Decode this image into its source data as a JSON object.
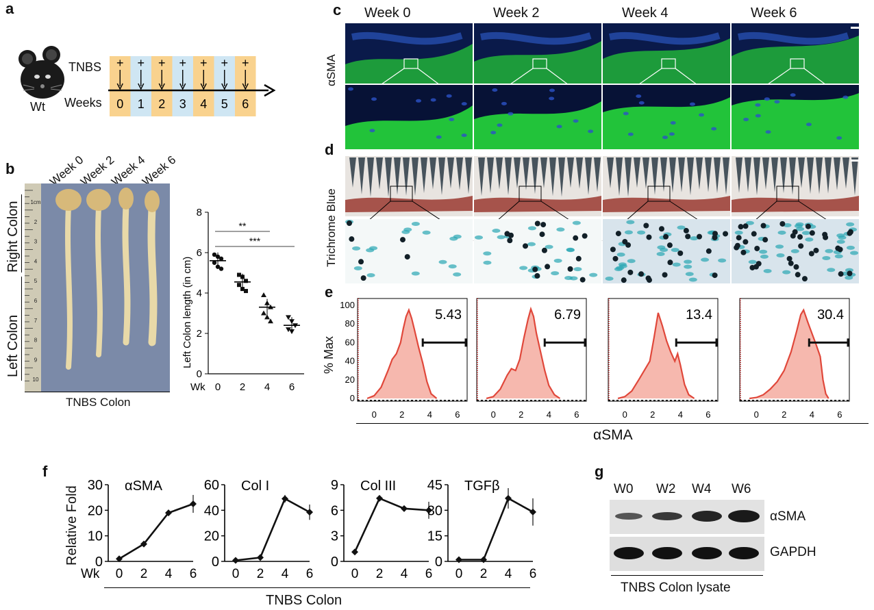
{
  "panel_letters": {
    "a": "a",
    "b": "b",
    "c": "c",
    "d": "d",
    "e": "e",
    "f": "f",
    "g": "g"
  },
  "panel_a": {
    "mouse_label": "Wt",
    "row_label_treatment": "TNBS",
    "row_label_time": "Weeks",
    "plus_sign": "+",
    "weeks": [
      "0",
      "1",
      "2",
      "3",
      "4",
      "5",
      "6"
    ],
    "colors": {
      "orange": "#f9d28e",
      "blue": "#cfe6f3"
    }
  },
  "panel_b": {
    "week_labels": [
      "Week 0",
      "Week 2",
      "Week 4",
      "Week 6"
    ],
    "region_right": "Right Colon",
    "region_left": "Left Colon",
    "caption": "TNBS Colon",
    "ruler_numbers": [
      "1cm",
      "2",
      "3",
      "4",
      "5",
      "6",
      "7",
      "8",
      "9",
      "10"
    ]
  },
  "chart_data": [
    {
      "id": "colon-length",
      "type": "scatter",
      "title": "",
      "ylabel": "Left Colon length (in cm)",
      "xlabel_prefix": "Wk",
      "categories": [
        "0",
        "2",
        "4",
        "6"
      ],
      "ylim": [
        0,
        8
      ],
      "yticks": [
        "0",
        "2",
        "4",
        "6",
        "8"
      ],
      "means": [
        5.6,
        4.55,
        3.3,
        2.4
      ],
      "points": [
        [
          5.9,
          5.8,
          5.7,
          5.5,
          5.3,
          5.2
        ],
        [
          4.9,
          4.8,
          4.6,
          4.4,
          4.2,
          4.1
        ],
        [
          3.9,
          3.5,
          3.3,
          3.0,
          2.8,
          2.6
        ],
        [
          2.8,
          2.6,
          2.4,
          2.2,
          2.1
        ]
      ],
      "significance": [
        {
          "label": "**",
          "from": "0",
          "to": "4"
        },
        {
          "label": "***",
          "from": "0",
          "to": "6"
        }
      ]
    },
    {
      "id": "flow-histograms",
      "type": "area",
      "ylabel": "% Max",
      "xlabel": "αSMA",
      "xticks": [
        "0",
        "2",
        "4",
        "6"
      ],
      "yticks": [
        "0",
        "20",
        "40",
        "60",
        "80",
        "100"
      ],
      "ylim": [
        0,
        100
      ],
      "xlim": [
        -1,
        6.5
      ],
      "panels": [
        {
          "week": "Week 0",
          "gate_percent": "5.43",
          "gate_start": 3.5,
          "peak_x": 2.4,
          "x": [
            -0.5,
            0,
            0.5,
            1,
            1.3,
            1.6,
            1.9,
            2.1,
            2.3,
            2.5,
            2.7,
            2.9,
            3.2,
            3.5,
            3.8,
            4.1,
            4.5
          ],
          "y": [
            0,
            3,
            12,
            30,
            42,
            48,
            60,
            75,
            88,
            95,
            86,
            74,
            55,
            38,
            18,
            5,
            0
          ]
        },
        {
          "week": "Week 2",
          "gate_percent": "6.79",
          "gate_start": 3.7,
          "peak_x": 2.7,
          "x": [
            -0.5,
            0,
            0.5,
            1,
            1.3,
            1.6,
            1.9,
            2.2,
            2.5,
            2.7,
            2.9,
            3.1,
            3.4,
            3.7,
            4.0,
            4.4,
            4.8
          ],
          "y": [
            0,
            2,
            10,
            25,
            32,
            30,
            42,
            65,
            85,
            96,
            88,
            70,
            50,
            30,
            14,
            4,
            0
          ]
        },
        {
          "week": "Week 4",
          "gate_percent": "13.4",
          "gate_start": 3.7,
          "peak_x": 2.4,
          "x": [
            -0.5,
            0,
            0.5,
            1,
            1.4,
            1.8,
            2.1,
            2.4,
            2.7,
            3.0,
            3.3,
            3.6,
            3.8,
            4.0,
            4.3,
            4.6,
            5.0
          ],
          "y": [
            0,
            2,
            8,
            20,
            30,
            40,
            65,
            92,
            78,
            62,
            50,
            40,
            48,
            36,
            15,
            4,
            0
          ]
        },
        {
          "week": "Week 6",
          "gate_percent": "30.4",
          "gate_start": 3.8,
          "peak_x": 3.3,
          "x": [
            -0.5,
            0,
            0.5,
            1,
            1.5,
            2.0,
            2.5,
            2.9,
            3.2,
            3.4,
            3.7,
            4.0,
            4.3,
            4.6,
            4.8,
            5.0,
            5.2
          ],
          "y": [
            0,
            1,
            4,
            10,
            18,
            30,
            50,
            72,
            90,
            95,
            82,
            70,
            58,
            45,
            20,
            5,
            0
          ]
        }
      ]
    },
    {
      "id": "relative-fold",
      "type": "line",
      "ylabel": "Relative Fold",
      "xlabel_prefix": "Wk",
      "xlabel": "TNBS Colon",
      "categories": [
        "0",
        "2",
        "4",
        "6"
      ],
      "series": [
        {
          "name": "αSMA",
          "values": [
            1,
            6.8,
            19,
            22.5
          ],
          "errors": [
            0.5,
            1,
            1.2,
            3.5
          ],
          "ylim": [
            0,
            30
          ],
          "yticks": [
            "0",
            "10",
            "20",
            "30"
          ]
        },
        {
          "name": "Col I",
          "values": [
            0.8,
            3,
            49,
            38.5
          ],
          "errors": [
            0.5,
            0.8,
            3,
            6
          ],
          "ylim": [
            0,
            60
          ],
          "yticks": [
            "0",
            "20",
            "40",
            "60"
          ]
        },
        {
          "name": "Col III",
          "values": [
            1.1,
            7.4,
            6.2,
            6.0
          ],
          "errors": [
            0.1,
            0.2,
            0.25,
            1
          ],
          "ylim": [
            0,
            9
          ],
          "yticks": [
            "0",
            "3",
            "6",
            "9"
          ]
        },
        {
          "name": "TGFβ",
          "values": [
            1,
            1,
            37,
            29
          ],
          "errors": [
            0.2,
            0.2,
            6,
            8
          ],
          "ylim": [
            0,
            45
          ],
          "yticks": [
            "0",
            "15",
            "30",
            "45"
          ]
        }
      ]
    }
  ],
  "panel_c": {
    "row_label": "αSMA",
    "columns": [
      "Week 0",
      "Week 2",
      "Week 4",
      "Week 6"
    ]
  },
  "panel_d": {
    "row_label": "Trichrome Blue"
  },
  "panel_g": {
    "lanes": [
      "W0",
      "W2",
      "W4",
      "W6"
    ],
    "bands": [
      "αSMA",
      "GAPDH"
    ],
    "caption": "TNBS Colon lysate"
  }
}
